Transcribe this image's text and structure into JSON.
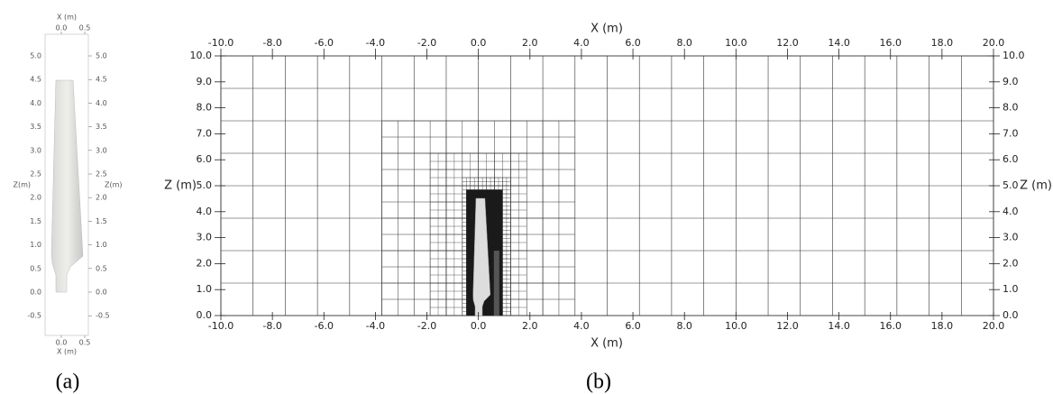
{
  "panel_a": {
    "x_label": "X (m)",
    "z_label": "Z(m)",
    "xticks": [
      {
        "value": 0,
        "label": "0.0"
      },
      {
        "value": 0.5,
        "label": "0.5"
      }
    ],
    "zticks": [
      {
        "value": -0.5,
        "label": "-0.5"
      },
      {
        "value": 0,
        "label": "0.0"
      },
      {
        "value": 0.5,
        "label": "0.5"
      },
      {
        "value": 1,
        "label": "1.0"
      },
      {
        "value": 1.5,
        "label": "1.5"
      },
      {
        "value": 2,
        "label": "2.0"
      },
      {
        "value": 2.5,
        "label": "2.5"
      },
      {
        "value": 3,
        "label": "3.0"
      },
      {
        "value": 3.5,
        "label": "3.5"
      },
      {
        "value": 4,
        "label": "4.0"
      },
      {
        "value": 4.5,
        "label": "4.5"
      },
      {
        "value": 5,
        "label": "5.0"
      }
    ],
    "caption": "(a)"
  },
  "panel_b": {
    "x_label": "X (m)",
    "z_label": "Z (m)",
    "xticks": [
      {
        "value": -10,
        "label": "-10.0"
      },
      {
        "value": -8,
        "label": "-8.0"
      },
      {
        "value": -6,
        "label": "-6.0"
      },
      {
        "value": -4,
        "label": "-4.0"
      },
      {
        "value": -2,
        "label": "-2.0"
      },
      {
        "value": 0,
        "label": "0.0"
      },
      {
        "value": 2,
        "label": "2.0"
      },
      {
        "value": 4,
        "label": "4.0"
      },
      {
        "value": 6,
        "label": "6.0"
      },
      {
        "value": 8,
        "label": "8.0"
      },
      {
        "value": 10,
        "label": "10.0"
      },
      {
        "value": 12,
        "label": "12.0"
      },
      {
        "value": 14,
        "label": "14.0"
      },
      {
        "value": 16,
        "label": "16.0"
      },
      {
        "value": 18,
        "label": "18.0"
      },
      {
        "value": 20,
        "label": "20.0"
      }
    ],
    "zticks": [
      {
        "value": 0,
        "label": "0.0"
      },
      {
        "value": 1,
        "label": "1.0"
      },
      {
        "value": 2,
        "label": "2.0"
      },
      {
        "value": 3,
        "label": "3.0"
      },
      {
        "value": 4,
        "label": "4.0"
      },
      {
        "value": 5,
        "label": "5.0"
      },
      {
        "value": 6,
        "label": "6.0"
      },
      {
        "value": 7,
        "label": "7.0"
      },
      {
        "value": 8,
        "label": "8.0"
      },
      {
        "value": 9,
        "label": "9.0"
      },
      {
        "value": 10,
        "label": "10.0"
      }
    ],
    "caption": "(b)"
  }
}
